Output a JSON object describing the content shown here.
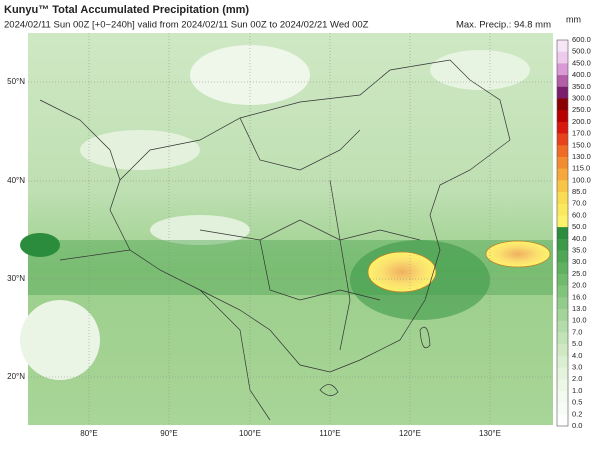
{
  "header": {
    "title": "Kunyu™ Total Accumulated Precipitation (mm)",
    "subtitle": "2024/02/11 Sun 00Z [+0~240h] valid from 2024/02/11 Sun 00Z to 2024/02/21 Wed 00Z",
    "max_precip": "Max. Precip.: 94.8 mm"
  },
  "colorbar": {
    "unit": "mm",
    "labels": [
      "600.0",
      "500.0",
      "450.0",
      "400.0",
      "350.0",
      "300.0",
      "250.0",
      "200.0",
      "170.0",
      "150.0",
      "130.0",
      "115.0",
      "100.0",
      "85.0",
      "70.0",
      "60.0",
      "50.0",
      "40.0",
      "35.0",
      "30.0",
      "25.0",
      "20.0",
      "16.0",
      "13.0",
      "10.0",
      "7.0",
      "5.0",
      "4.0",
      "3.0",
      "2.0",
      "1.0",
      "0.5",
      "0.2",
      "0.0"
    ],
    "colors": [
      "#f6e6f6",
      "#eecbec",
      "#d99ad6",
      "#b25fa8",
      "#7a1e6e",
      "#8b0000",
      "#b80000",
      "#d81a0e",
      "#e8421c",
      "#f06b25",
      "#f38c30",
      "#f6a93a",
      "#f8c546",
      "#f9dc52",
      "#fbe85e",
      "#fdf36a",
      "#2a8c3c",
      "#3d9a49",
      "#4fa654",
      "#5fb060",
      "#6fba6c",
      "#80c37a",
      "#92cc8a",
      "#a3d49a",
      "#b3dcaa",
      "#c2e3b8",
      "#cfe9c5",
      "#daefd1",
      "#e4f3dc",
      "#ecf7e6",
      "#f3faef",
      "#f8fcf6",
      "#fdfefd"
    ]
  },
  "map": {
    "lat_labels": [
      "50°N",
      "40°N",
      "30°N",
      "20°N"
    ],
    "lon_labels": [
      "80°E",
      "90°E",
      "100°E",
      "110°E",
      "120°E",
      "130°E"
    ]
  }
}
